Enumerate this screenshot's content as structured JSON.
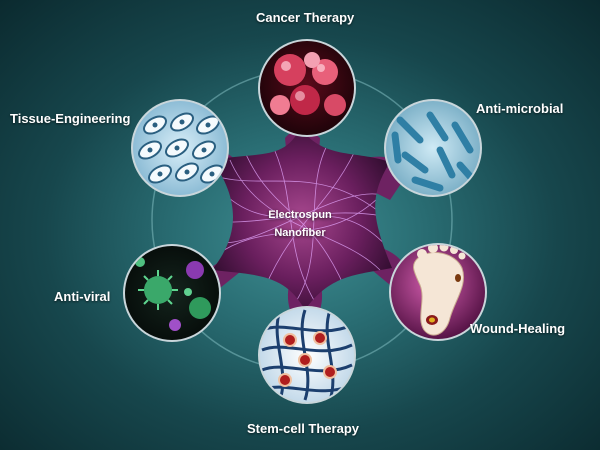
{
  "center": {
    "line1": "Electrospun",
    "line2": "Nanofiber"
  },
  "applications": [
    {
      "label": "Cancer Therapy",
      "icon": "cancer-cells-icon"
    },
    {
      "label": "Anti-microbial",
      "icon": "bacteria-icon"
    },
    {
      "label": "Wound-Healing",
      "icon": "foot-wound-icon"
    },
    {
      "label": "Stem-cell Therapy",
      "icon": "stem-cell-scaffold-icon"
    },
    {
      "label": "Anti-viral",
      "icon": "virus-icon"
    },
    {
      "label": "Tissue-Engineering",
      "icon": "tissue-cells-icon"
    }
  ],
  "colors": {
    "background_center": "#3f8f93",
    "background_edge": "#0b2a2f",
    "hub": "#7a2a6e",
    "fiber": "#e6a8ff",
    "cancer": "#b0203c",
    "microbial": "#5fb8d8",
    "wound": "#9a2b78",
    "stemcell": "#1c3f6e",
    "viral": "#2a6a4a",
    "tissue": "#3a7fa8"
  }
}
